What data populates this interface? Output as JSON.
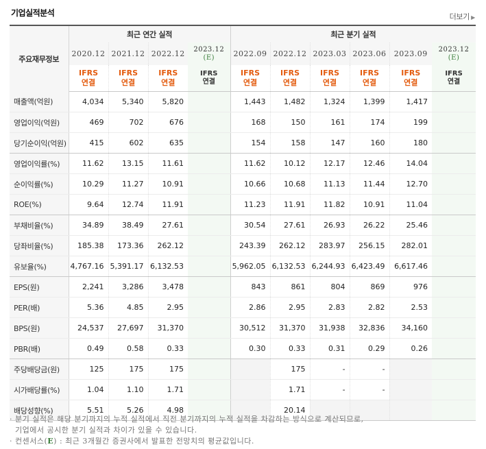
{
  "title": "기업실적분석",
  "more_link": "더보기",
  "header": {
    "label_col": "주요재무정보",
    "annual_group": "최근 연간 실적",
    "quarter_group": "최근 분기 실적",
    "annual_periods": [
      "2020.12",
      "2021.12",
      "2022.12"
    ],
    "annual_estimate": {
      "period": "2023.12",
      "mark": "(E)"
    },
    "quarter_periods": [
      "2022.09",
      "2022.12",
      "2023.03",
      "2023.06",
      "2023.09"
    ],
    "quarter_estimate": {
      "period": "2023.12",
      "mark": "(E)"
    },
    "standard": "IFRS",
    "consolidated": "연결"
  },
  "rows": [
    {
      "label": "매출액(억원)",
      "annual": [
        "4,034",
        "5,340",
        "5,820"
      ],
      "quarter": [
        "1,443",
        "1,482",
        "1,324",
        "1,399",
        "1,417"
      ]
    },
    {
      "label": "영업이익(억원)",
      "annual": [
        "469",
        "702",
        "676"
      ],
      "quarter": [
        "168",
        "150",
        "161",
        "174",
        "199"
      ]
    },
    {
      "label": "당기순이익(억원)",
      "annual": [
        "415",
        "602",
        "635"
      ],
      "quarter": [
        "154",
        "158",
        "147",
        "160",
        "180"
      ]
    },
    {
      "label": "영업이익률(%)",
      "annual": [
        "11.62",
        "13.15",
        "11.61"
      ],
      "quarter": [
        "11.62",
        "10.12",
        "12.17",
        "12.46",
        "14.04"
      ]
    },
    {
      "label": "순이익률(%)",
      "annual": [
        "10.29",
        "11.27",
        "10.91"
      ],
      "quarter": [
        "10.66",
        "10.68",
        "11.13",
        "11.44",
        "12.70"
      ]
    },
    {
      "label": "ROE(%)",
      "annual": [
        "9.64",
        "12.74",
        "11.91"
      ],
      "quarter": [
        "11.23",
        "11.91",
        "11.82",
        "10.91",
        "11.04"
      ]
    },
    {
      "label": "부채비율(%)",
      "annual": [
        "34.89",
        "38.49",
        "27.61"
      ],
      "quarter": [
        "30.54",
        "27.61",
        "26.93",
        "26.22",
        "25.46"
      ]
    },
    {
      "label": "당좌비율(%)",
      "annual": [
        "185.38",
        "173.36",
        "262.12"
      ],
      "quarter": [
        "243.39",
        "262.12",
        "283.97",
        "256.15",
        "282.01"
      ]
    },
    {
      "label": "유보율(%)",
      "annual": [
        "4,767.16",
        "5,391.17",
        "6,132.53"
      ],
      "quarter": [
        "5,962.05",
        "6,132.53",
        "6,244.93",
        "6,423.49",
        "6,617.46"
      ]
    },
    {
      "label": "EPS(원)",
      "annual": [
        "2,241",
        "3,286",
        "3,478"
      ],
      "quarter": [
        "843",
        "861",
        "804",
        "869",
        "976"
      ]
    },
    {
      "label": "PER(배)",
      "annual": [
        "5.36",
        "4.85",
        "2.95"
      ],
      "quarter": [
        "2.86",
        "2.95",
        "2.83",
        "2.82",
        "2.53"
      ]
    },
    {
      "label": "BPS(원)",
      "annual": [
        "24,537",
        "27,697",
        "31,370"
      ],
      "quarter": [
        "30,512",
        "31,370",
        "31,938",
        "32,836",
        "34,160"
      ]
    },
    {
      "label": "PBR(배)",
      "annual": [
        "0.49",
        "0.58",
        "0.33"
      ],
      "quarter": [
        "0.30",
        "0.33",
        "0.31",
        "0.29",
        "0.26"
      ]
    },
    {
      "label": "주당배당금(원)",
      "annual": [
        "125",
        "175",
        "175"
      ],
      "quarter": [
        "",
        "175",
        "-",
        "-",
        ""
      ]
    },
    {
      "label": "시가배당률(%)",
      "annual": [
        "1.04",
        "1.10",
        "1.71"
      ],
      "quarter": [
        "",
        "1.71",
        "-",
        "-",
        ""
      ]
    },
    {
      "label": "배당성향(%)",
      "annual": [
        "5.51",
        "5.26",
        "4.98"
      ],
      "quarter": [
        "",
        "20.14",
        "",
        "",
        ""
      ]
    }
  ],
  "notes": {
    "line1": "분기 실적은 해당 분기까지의 누적 실적에서 직전 분기까지의 누적 실적을 차감하는 방식으로 계산되므로,",
    "line2": "기업에서 공시한 분기 실적과 차이가 있을 수 있습니다.",
    "line3_prefix": "컨센서스(",
    "line3_mark": "E",
    "line3_suffix": ") : 최근 3개월간 증권사에서 발표한 전망치의 평균값입니다."
  },
  "colors": {
    "accent_orange": "#e35b0e",
    "estimate_bg": "#f3f9f3",
    "estimate_mark": "#3a7d3a"
  }
}
